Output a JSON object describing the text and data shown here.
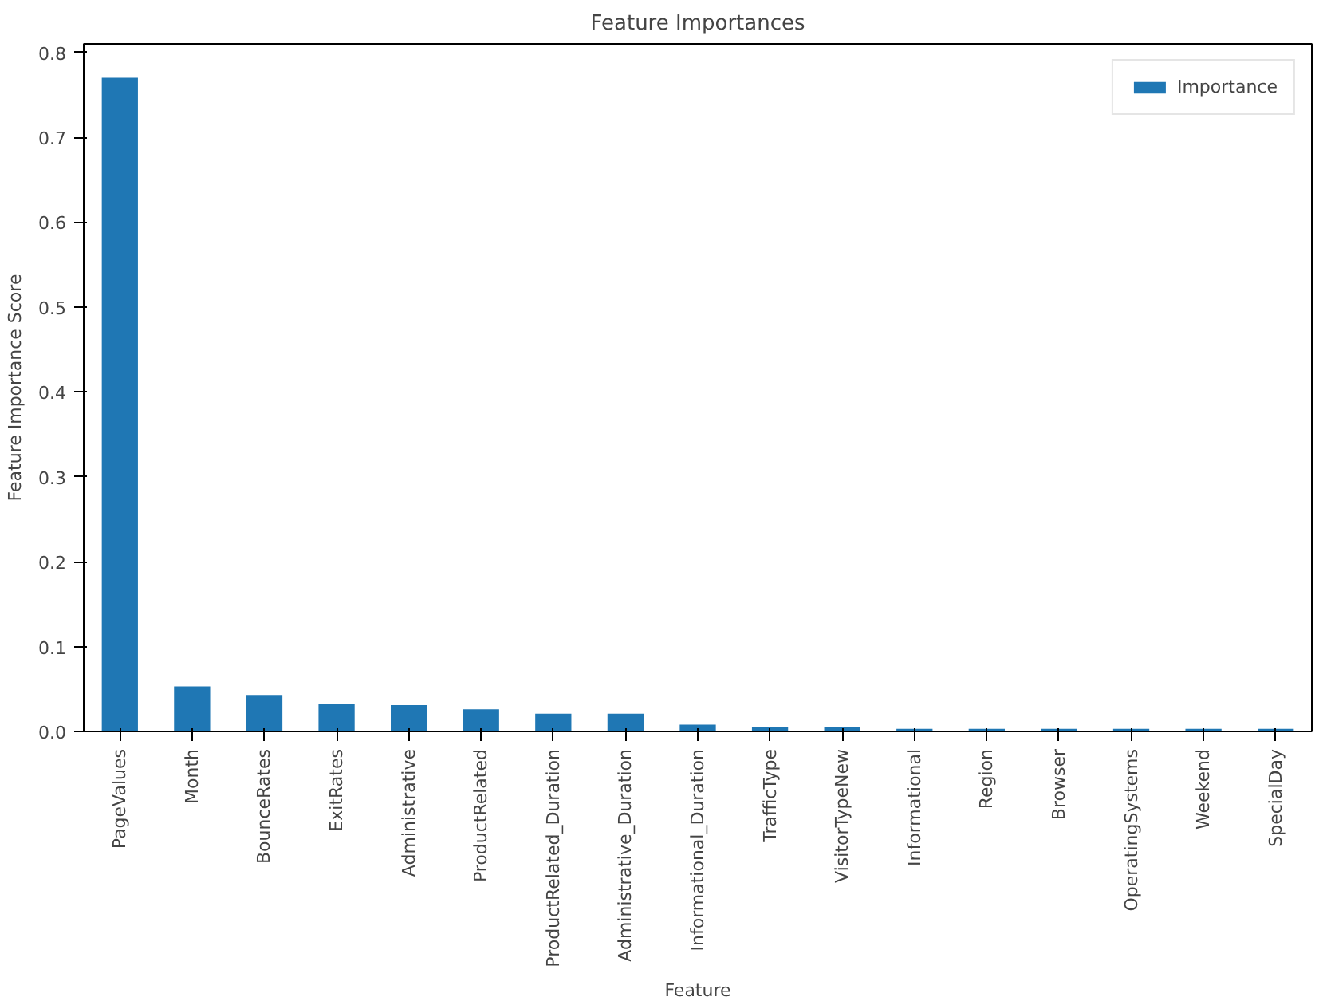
{
  "chart_data": {
    "type": "bar",
    "title": "Feature Importances",
    "xlabel": "Feature",
    "ylabel": "Feature Importance Score",
    "categories": [
      "PageValues",
      "Month",
      "BounceRates",
      "ExitRates",
      "Administrative",
      "ProductRelated",
      "ProductRelated_Duration",
      "Administrative_Duration",
      "Informational_Duration",
      "TrafficType",
      "VisitorTypeNew",
      "Informational",
      "Region",
      "Browser",
      "OperatingSystems",
      "Weekend",
      "SpecialDay"
    ],
    "series": [
      {
        "name": "Importance",
        "color": "#1f77b4",
        "values": [
          0.77,
          0.053,
          0.043,
          0.033,
          0.031,
          0.026,
          0.021,
          0.021,
          0.008,
          0.005,
          0.005,
          0.003,
          0.003,
          0.003,
          0.003,
          0.003,
          0.003
        ]
      }
    ],
    "ylim": [
      0,
      0.81
    ],
    "yticks": [
      {
        "value": 0,
        "label": "0.0"
      },
      0.1,
      0.2,
      0.3,
      0.4,
      0.5,
      0.6,
      0.7,
      0.8
    ],
    "legend": "top right"
  }
}
